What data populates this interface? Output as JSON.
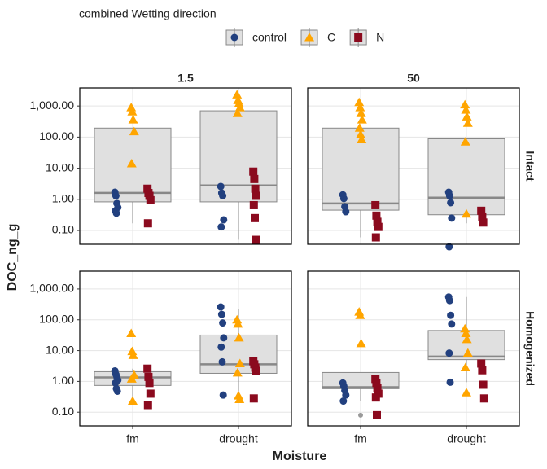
{
  "chart_data": {
    "type": "box",
    "legend_title": "combined Wetting direction",
    "x_label": "Moisture",
    "y_label": "DOC_ng_g",
    "log_y": true,
    "grid": true,
    "categories": [
      "fm",
      "drought"
    ],
    "columns": [
      "1.5",
      "50"
    ],
    "rows": [
      "Intact",
      "Homogenized"
    ],
    "ylim": [
      0.036,
      3800
    ],
    "yticks": [
      {
        "value": 0.1,
        "label": "0.10"
      },
      {
        "value": 1,
        "label": "1.00"
      },
      {
        "value": 10,
        "label": "10.00"
      },
      {
        "value": 100,
        "label": "100.00"
      },
      {
        "value": 1000,
        "label": "1,000.00"
      }
    ],
    "box_color": "#e0e0e0",
    "outlier_color": "#999999",
    "series": [
      {
        "name": "control",
        "color": "#22407f",
        "marker": "circle"
      },
      {
        "name": "C",
        "color": "#ffa500",
        "marker": "triangle"
      },
      {
        "name": "N",
        "color": "#8b0a1e",
        "marker": "square"
      }
    ],
    "panels": [
      {
        "boxes": [
          {
            "low": 0.17,
            "q1": 0.83,
            "median": 1.62,
            "q3": 195,
            "high": 195,
            "outliers": []
          },
          {
            "low": 0.05,
            "q1": 0.83,
            "median": 2.8,
            "q3": 700,
            "high": 700,
            "outliers": []
          }
        ],
        "points": [
          [
            [
              1.7,
              1.3,
              0.74,
              0.55,
              0.43,
              0.36
            ],
            [
              2.6,
              1.6,
              1.3,
              0.22,
              0.13
            ]
          ],
          [
            [
              890,
              650,
              360,
              150,
              14
            ],
            [
              2300,
              1500,
              1200,
              890,
              580
            ]
          ],
          [
            [
              2.2,
              1.6,
              1.3,
              0.94,
              0.17
            ],
            [
              7.8,
              4.5,
              2.2,
              1.3,
              0.65,
              0.25,
              0.05
            ]
          ]
        ]
      },
      {
        "boxes": [
          {
            "low": 0.06,
            "q1": 0.45,
            "median": 0.74,
            "q3": 195,
            "high": 195,
            "outliers": []
          },
          {
            "low": 0.17,
            "q1": 0.32,
            "median": 1.13,
            "q3": 88,
            "high": 88,
            "outliers": []
          }
        ],
        "points": [
          [
            [
              1.4,
              1.06,
              0.58,
              0.4
            ],
            [
              1.7,
              1.3,
              0.78,
              0.25,
              0.03
            ]
          ],
          [
            [
              1300,
              890,
              580,
              360,
              195,
              120,
              83
            ],
            [
              1100,
              740,
              450,
              280,
              70,
              0.34
            ]
          ],
          [
            [
              0.65,
              0.3,
              0.19,
              0.13,
              0.06
            ],
            [
              0.43,
              0.28,
              0.18
            ]
          ]
        ]
      },
      {
        "boxes": [
          {
            "low": 0.23,
            "q1": 0.74,
            "median": 1.35,
            "q3": 2.07,
            "high": 2.6,
            "outliers": []
          },
          {
            "low": 0.3,
            "q1": 1.83,
            "median": 3.6,
            "q3": 32,
            "high": 230,
            "outliers": []
          }
        ],
        "points": [
          [
            [
              2.2,
              1.7,
              1.4,
              1.1,
              0.89,
              0.58,
              0.48
            ],
            [
              260,
              150,
              79,
              26,
              13,
              4.3,
              0.36
            ]
          ],
          [
            [
              36,
              9.4,
              7,
              1.6,
              1.2,
              0.23
            ],
            [
              100,
              73,
              26,
              3.8,
              1.9,
              0.34,
              0.26
            ]
          ],
          [
            [
              2.6,
              1.4,
              0.89,
              0.4,
              0.17
            ],
            [
              4.5,
              3.6,
              2.8,
              2.2,
              0.28
            ]
          ]
        ]
      },
      {
        "boxes": [
          {
            "low": 0.23,
            "q1": 0.58,
            "median": 0.65,
            "q3": 1.95,
            "high": 1.95,
            "outliers": [
              0.08
            ]
          },
          {
            "low": 0.94,
            "q1": 5.1,
            "median": 6.4,
            "q3": 45,
            "high": 550,
            "outliers": []
          }
        ],
        "points": [
          [
            [
              0.89,
              0.7,
              0.51,
              0.36,
              0.23
            ],
            [
              550,
              420,
              140,
              73,
              8.3,
              0.94
            ]
          ],
          [
            [
              180,
              140,
              17
            ],
            [
              51,
              36,
              23,
              8.3,
              2.8,
              0.43
            ]
          ],
          [
            [
              1.2,
              0.89,
              0.62,
              0.4,
              0.3,
              0.08
            ],
            [
              3.8,
              2.3,
              0.78,
              0.28
            ]
          ]
        ]
      }
    ]
  }
}
